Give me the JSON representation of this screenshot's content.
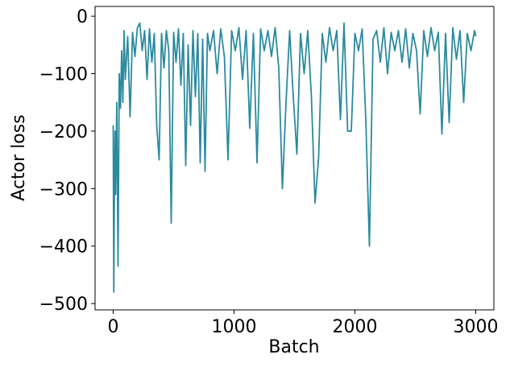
{
  "chart_data": {
    "type": "line",
    "x_label": "Batch",
    "y_label": "Actor loss",
    "x": [
      0,
      5,
      10,
      15,
      20,
      30,
      40,
      50,
      60,
      70,
      80,
      90,
      100,
      120,
      140,
      160,
      180,
      200,
      220,
      240,
      260,
      280,
      300,
      320,
      340,
      360,
      380,
      400,
      420,
      440,
      460,
      480,
      500,
      520,
      540,
      560,
      580,
      600,
      620,
      640,
      660,
      680,
      700,
      720,
      740,
      760,
      780,
      800,
      830,
      860,
      890,
      920,
      950,
      980,
      1010,
      1040,
      1070,
      1100,
      1130,
      1160,
      1190,
      1220,
      1250,
      1280,
      1310,
      1340,
      1370,
      1400,
      1430,
      1460,
      1490,
      1520,
      1550,
      1580,
      1610,
      1640,
      1670,
      1700,
      1730,
      1760,
      1790,
      1820,
      1850,
      1880,
      1910,
      1940,
      1970,
      2000,
      2030,
      2060,
      2090,
      2120,
      2150,
      2180,
      2210,
      2240,
      2270,
      2300,
      2330,
      2360,
      2390,
      2420,
      2450,
      2480,
      2510,
      2540,
      2570,
      2600,
      2630,
      2660,
      2690,
      2720,
      2750,
      2780,
      2810,
      2840,
      2870,
      2900,
      2930,
      2960,
      2990,
      3000
    ],
    "series": [
      {
        "name": "Actor loss",
        "color": "#2a8a9e",
        "values": [
          -190,
          -480,
          -300,
          -200,
          -310,
          -150,
          -435,
          -100,
          -160,
          -60,
          -150,
          -25,
          -110,
          -35,
          -175,
          -28,
          -70,
          -20,
          -12,
          -60,
          -25,
          -110,
          -22,
          -80,
          -30,
          -190,
          -250,
          -30,
          -90,
          -25,
          -60,
          -360,
          -28,
          -80,
          -22,
          -120,
          -30,
          -260,
          -50,
          -190,
          -25,
          -140,
          -30,
          -255,
          -40,
          -270,
          -30,
          -60,
          -25,
          -100,
          -22,
          -70,
          -250,
          -25,
          -60,
          -20,
          -110,
          -25,
          -195,
          -30,
          -255,
          -22,
          -60,
          -25,
          -70,
          -20,
          -90,
          -300,
          -150,
          -25,
          -140,
          -240,
          -30,
          -100,
          -25,
          -140,
          -325,
          -245,
          -30,
          -80,
          -20,
          -60,
          -25,
          -180,
          -12,
          -200,
          -200,
          -30,
          -60,
          -22,
          -180,
          -400,
          -40,
          -25,
          -80,
          -20,
          -100,
          -28,
          -60,
          -25,
          -80,
          -22,
          -90,
          -30,
          -60,
          -170,
          -25,
          -70,
          -20,
          -60,
          -28,
          -205,
          -30,
          -185,
          -20,
          -75,
          -25,
          -150,
          -30,
          -60,
          -25,
          -35
        ]
      }
    ],
    "xlim": [
      -150,
      3150
    ],
    "ylim": [
      -511,
      17
    ],
    "xticks": [
      0,
      1000,
      2000,
      3000
    ],
    "yticks": [
      {
        "value": -500,
        "label": "−500"
      },
      {
        "value": -400,
        "label": "−400"
      },
      {
        "value": -300,
        "label": "−300"
      },
      {
        "value": -200,
        "label": "−200"
      },
      {
        "value": -100,
        "label": "−100"
      },
      0
    ]
  }
}
